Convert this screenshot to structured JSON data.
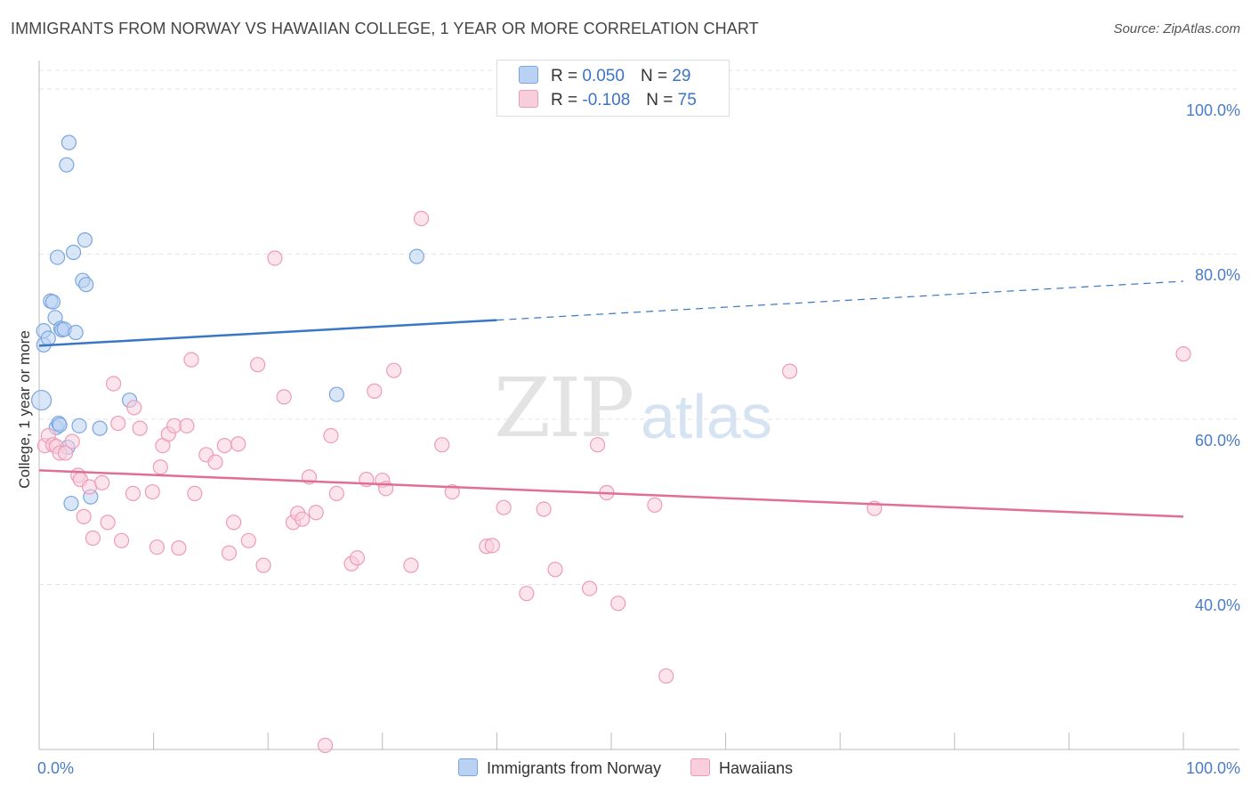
{
  "header": {
    "title": "IMMIGRANTS FROM NORWAY VS HAWAIIAN COLLEGE, 1 YEAR OR MORE CORRELATION CHART",
    "source": "Source: ZipAtlas.com"
  },
  "watermark": {
    "zip": "ZIP",
    "atlas": "atlas"
  },
  "legend": {
    "rows": [
      {
        "r_label": "R =",
        "r_value": "0.050",
        "n_label": "N =",
        "n_value": "29"
      },
      {
        "r_label": "R =",
        "r_value": "-0.108",
        "n_label": "N =",
        "n_value": "75"
      }
    ]
  },
  "chart_data": {
    "type": "scatter",
    "title": "IMMIGRANTS FROM NORWAY VS HAWAIIAN COLLEGE, 1 YEAR OR MORE CORRELATION CHART",
    "xlabel": "",
    "ylabel": "College, 1 year or more",
    "xlim": [
      0,
      100
    ],
    "ylim": [
      20,
      103
    ],
    "x_tick_labels": [
      "0.0%",
      "100.0%"
    ],
    "y_ticks": [
      {
        "value": 100,
        "label": "100.0%"
      },
      {
        "value": 80,
        "label": "80.0%"
      },
      {
        "value": 60,
        "label": "60.0%"
      },
      {
        "value": 40,
        "label": "40.0%"
      }
    ],
    "grid": true,
    "legend_position": "bottom",
    "series": [
      {
        "name": "Immigrants from Norway",
        "color": "#7aa6e0",
        "fill": "#b9d1f2",
        "trend_color": "#3a76c8",
        "r": 0.05,
        "n": 29,
        "trend": {
          "x0": 0,
          "y0": 68.9,
          "x1": 40,
          "y1": 72.0,
          "dash_to_x": 100,
          "dash_to_y": 76.7
        },
        "points": [
          [
            0.2,
            62.3
          ],
          [
            0.4,
            69.0
          ],
          [
            0.4,
            70.7
          ],
          [
            0.8,
            69.8
          ],
          [
            1.0,
            74.3
          ],
          [
            1.2,
            74.2
          ],
          [
            1.4,
            72.3
          ],
          [
            1.5,
            59.0
          ],
          [
            1.6,
            79.6
          ],
          [
            1.7,
            59.5
          ],
          [
            1.8,
            59.3
          ],
          [
            1.9,
            71.0
          ],
          [
            2.0,
            70.8
          ],
          [
            2.2,
            70.9
          ],
          [
            2.5,
            56.6
          ],
          [
            2.6,
            93.5
          ],
          [
            2.8,
            49.8
          ],
          [
            3.0,
            80.2
          ],
          [
            3.2,
            70.5
          ],
          [
            3.5,
            59.2
          ],
          [
            3.8,
            76.8
          ],
          [
            4.0,
            81.7
          ],
          [
            4.1,
            76.3
          ],
          [
            4.5,
            50.6
          ],
          [
            5.3,
            58.9
          ],
          [
            7.9,
            62.3
          ],
          [
            26.0,
            63.0
          ],
          [
            33.0,
            79.7
          ],
          [
            2.4,
            90.8
          ]
        ]
      },
      {
        "name": "Hawaiians",
        "color": "#ee9bb8",
        "fill": "#f8cedd",
        "trend_color": "#e16e98",
        "r": -0.108,
        "n": 75,
        "trend": {
          "x0": 0,
          "y0": 53.8,
          "x1": 100,
          "y1": 48.2
        },
        "points": [
          [
            0.5,
            56.8
          ],
          [
            0.8,
            58.0
          ],
          [
            1.2,
            56.9
          ],
          [
            1.5,
            56.7
          ],
          [
            1.8,
            55.9
          ],
          [
            2.3,
            55.9
          ],
          [
            2.9,
            57.3
          ],
          [
            3.4,
            53.2
          ],
          [
            3.6,
            52.7
          ],
          [
            3.9,
            48.2
          ],
          [
            4.4,
            51.8
          ],
          [
            4.7,
            45.6
          ],
          [
            5.5,
            52.3
          ],
          [
            6.0,
            47.5
          ],
          [
            6.5,
            64.3
          ],
          [
            6.9,
            59.5
          ],
          [
            7.2,
            45.3
          ],
          [
            8.2,
            51.0
          ],
          [
            8.3,
            61.4
          ],
          [
            8.8,
            58.9
          ],
          [
            9.9,
            51.2
          ],
          [
            10.3,
            44.5
          ],
          [
            10.6,
            54.2
          ],
          [
            10.8,
            56.8
          ],
          [
            11.3,
            58.2
          ],
          [
            11.8,
            59.2
          ],
          [
            12.2,
            44.4
          ],
          [
            12.9,
            59.2
          ],
          [
            13.3,
            67.2
          ],
          [
            13.6,
            51.0
          ],
          [
            14.6,
            55.7
          ],
          [
            15.4,
            54.8
          ],
          [
            16.2,
            56.8
          ],
          [
            16.6,
            43.8
          ],
          [
            17.0,
            47.5
          ],
          [
            17.4,
            57.0
          ],
          [
            18.3,
            45.3
          ],
          [
            19.1,
            66.6
          ],
          [
            19.6,
            42.3
          ],
          [
            20.6,
            79.5
          ],
          [
            21.4,
            62.7
          ],
          [
            22.2,
            47.5
          ],
          [
            22.6,
            48.6
          ],
          [
            23.0,
            47.9
          ],
          [
            23.6,
            53.0
          ],
          [
            24.2,
            48.7
          ],
          [
            25.0,
            20.5
          ],
          [
            25.5,
            58.0
          ],
          [
            26.0,
            51.0
          ],
          [
            27.3,
            42.5
          ],
          [
            27.8,
            43.2
          ],
          [
            28.6,
            52.7
          ],
          [
            29.3,
            63.4
          ],
          [
            30.0,
            52.6
          ],
          [
            30.3,
            51.6
          ],
          [
            31.0,
            65.9
          ],
          [
            32.5,
            42.3
          ],
          [
            33.4,
            84.3
          ],
          [
            35.2,
            56.9
          ],
          [
            36.1,
            51.2
          ],
          [
            39.1,
            44.6
          ],
          [
            39.6,
            44.7
          ],
          [
            40.6,
            49.3
          ],
          [
            42.6,
            38.9
          ],
          [
            44.1,
            49.1
          ],
          [
            45.1,
            41.8
          ],
          [
            48.1,
            39.5
          ],
          [
            48.8,
            56.9
          ],
          [
            49.6,
            51.1
          ],
          [
            50.6,
            37.7
          ],
          [
            53.8,
            49.6
          ],
          [
            54.8,
            28.9
          ],
          [
            65.6,
            65.8
          ],
          [
            73.0,
            49.2
          ],
          [
            100,
            67.9
          ]
        ]
      }
    ]
  }
}
